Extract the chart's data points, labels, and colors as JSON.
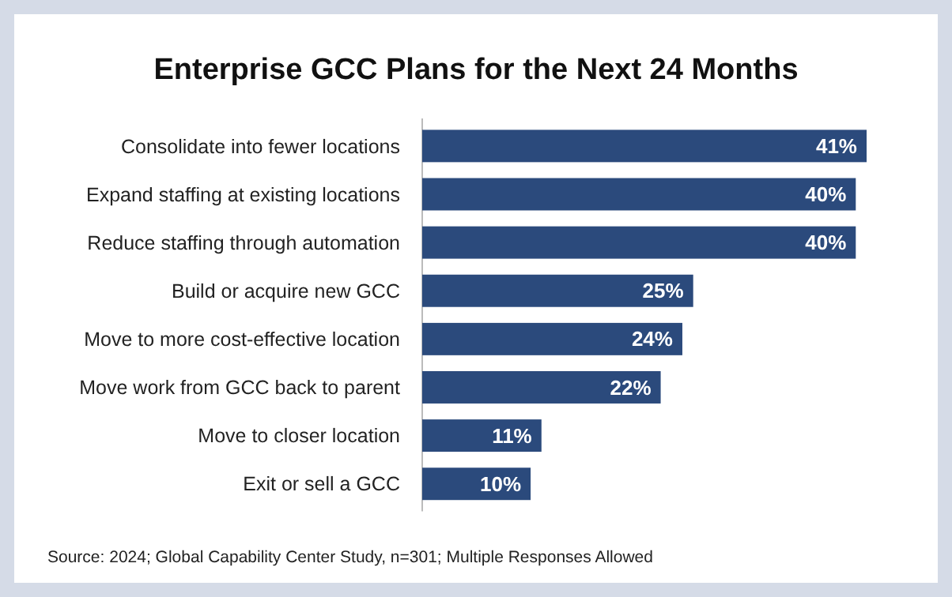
{
  "chart_data": {
    "type": "bar",
    "orientation": "horizontal",
    "title": "Enterprise GCC Plans for the Next 24 Months",
    "categories": [
      "Consolidate into fewer locations",
      "Expand staffing at existing locations",
      "Reduce staffing through automation",
      "Build or acquire new GCC",
      "Move to more cost-effective location",
      "Move work from GCC back to parent",
      "Move to closer location",
      "Exit or sell a GCC"
    ],
    "values": [
      41,
      40,
      40,
      25,
      24,
      22,
      11,
      10
    ],
    "value_labels": [
      "41%",
      "40%",
      "40%",
      "25%",
      "24%",
      "22%",
      "11%",
      "10%"
    ],
    "color": "#2b4a7c",
    "annotations": [
      "Source: 2024; Global Capability Center Study, n=301; Multiple Responses Allowed"
    ]
  }
}
